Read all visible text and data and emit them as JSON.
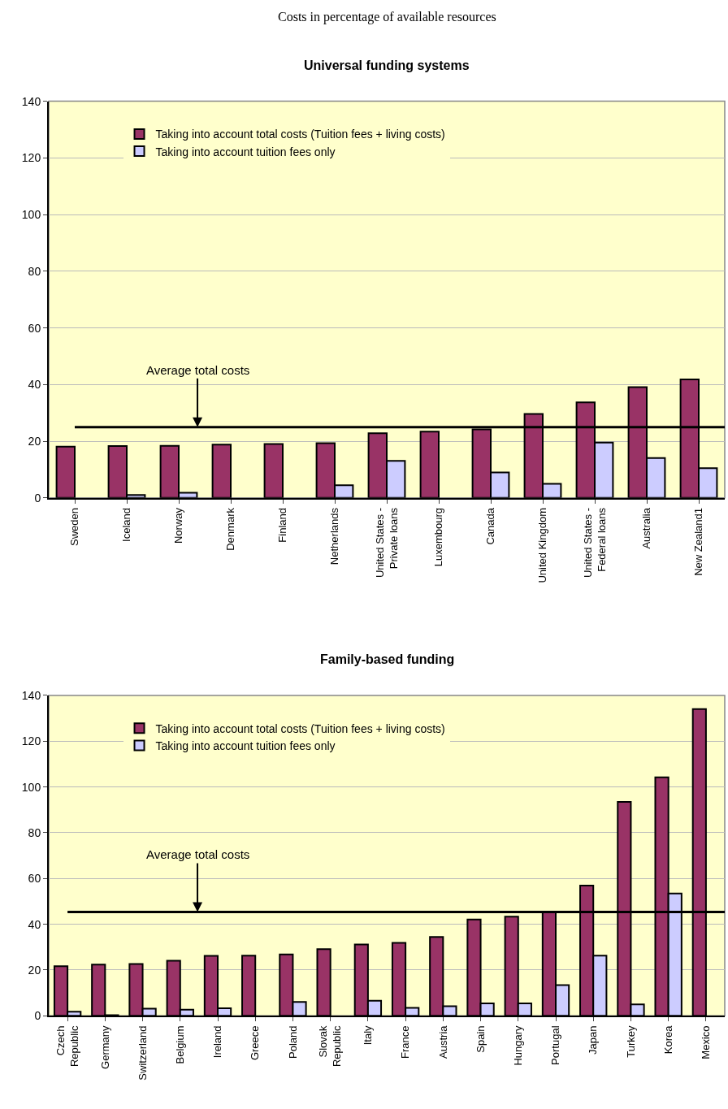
{
  "chart_data": [
    {
      "type": "bar",
      "title": "Universal funding systems",
      "annotations": [
        "Costs in percentage of available resources"
      ],
      "categories": [
        "Sweden",
        "Iceland",
        "Norway",
        "Denmark",
        "Finland",
        "Netherlands",
        "United States -\nPrivate loans",
        "Luxembourg",
        "Canada",
        "United Kingdom",
        "United States -\nFederal loans",
        "Australia",
        "New Zealand1"
      ],
      "series": [
        {
          "name": "Taking into account total costs (Tuition fees + living costs)",
          "color": "#993366",
          "values": [
            18.1,
            18.3,
            18.4,
            18.8,
            19.0,
            19.3,
            22.8,
            23.4,
            24.2,
            29.6,
            33.7,
            39.1,
            41.8
          ]
        },
        {
          "name": "Taking into account tuition fees only",
          "color": "#ccccff",
          "values": [
            null,
            1.0,
            1.8,
            null,
            null,
            4.5,
            13.1,
            null,
            9.0,
            5.0,
            19.5,
            14.1,
            10.5
          ]
        }
      ],
      "ylim": [
        0,
        140
      ],
      "yticks": [
        0,
        20,
        40,
        60,
        80,
        100,
        120,
        140
      ],
      "grid": "y",
      "legend": "top left",
      "ref_lines": [
        {
          "axis": "y",
          "value": 25.0,
          "label": "Average total costs",
          "color": "#000000"
        }
      ]
    },
    {
      "type": "bar",
      "title": "Family-based funding",
      "categories": [
        "Czech\nRepublic",
        "Germany",
        "Switzerland",
        "Belgium",
        "Ireland",
        "Greece",
        "Poland",
        "Slovak\nRepublic",
        "Italy",
        "France",
        "Austria",
        "Spain",
        "Hungary",
        "Portugal",
        "Japan",
        "Turkey",
        "Korea",
        "Mexico"
      ],
      "series": [
        {
          "name": "Taking into account total costs (Tuition fees + living costs)",
          "color": "#993366",
          "values": [
            21.7,
            22.4,
            22.6,
            24.1,
            26.2,
            26.3,
            26.8,
            29.1,
            31.2,
            31.9,
            34.4,
            42.1,
            43.3,
            45.4,
            56.9,
            93.5,
            104.2,
            134.0
          ]
        },
        {
          "name": "Taking into account tuition fees only",
          "color": "#ccccff",
          "values": [
            1.8,
            0.3,
            3.1,
            2.7,
            3.3,
            null,
            6.0,
            null,
            6.6,
            3.5,
            4.2,
            5.4,
            5.4,
            13.4,
            26.3,
            5.0,
            53.4,
            null
          ]
        }
      ],
      "ylim": [
        0,
        140
      ],
      "yticks": [
        0,
        20,
        40,
        60,
        80,
        100,
        120,
        140
      ],
      "grid": "y",
      "legend": "top left",
      "ref_lines": [
        {
          "axis": "y",
          "value": 45.4,
          "label": "Average total costs",
          "color": "#000000"
        }
      ]
    }
  ]
}
